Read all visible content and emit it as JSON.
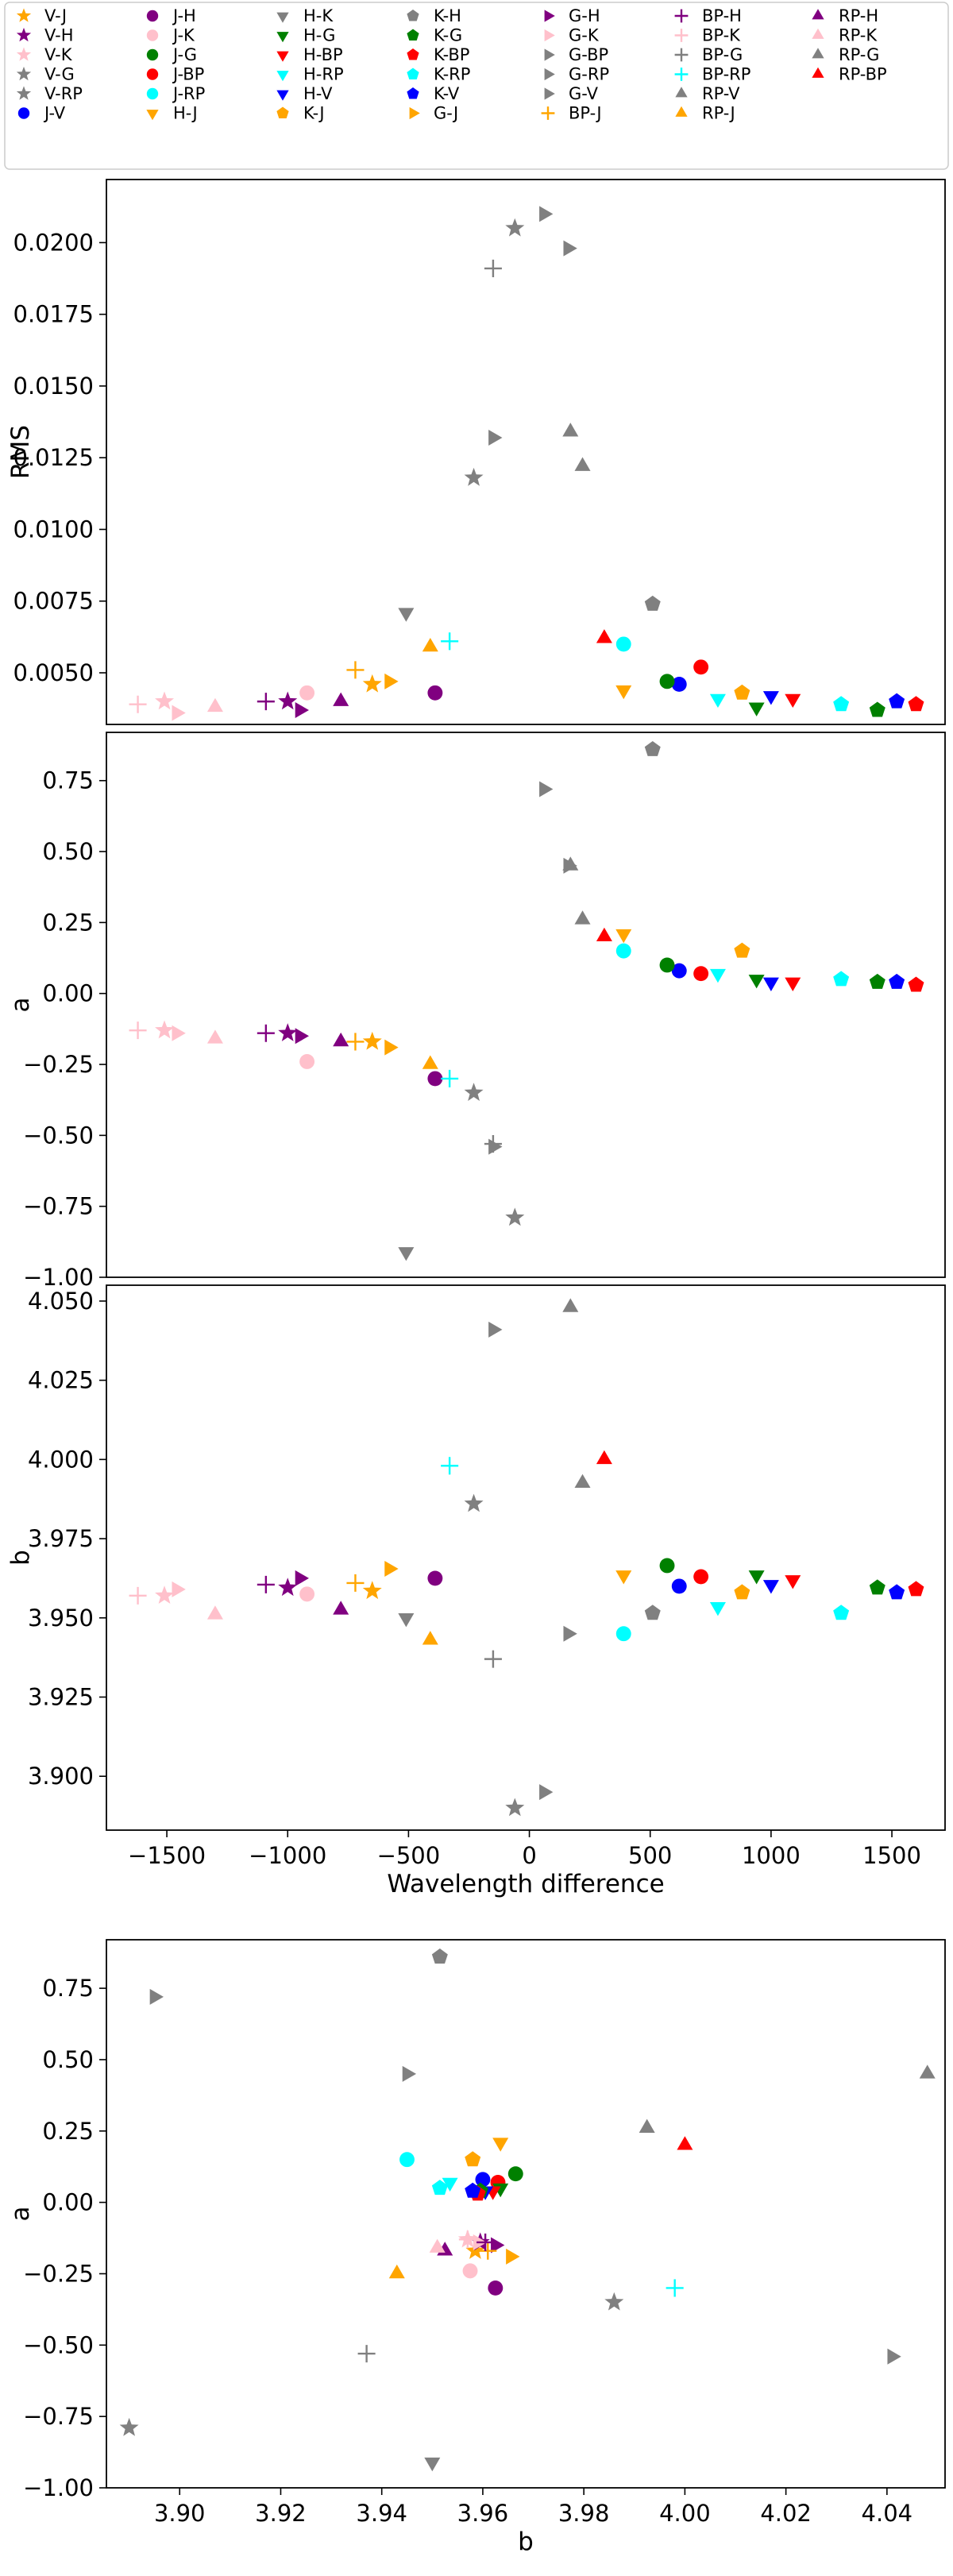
{
  "chart_data": {
    "legend": {
      "placement": "top",
      "entries": [
        {
          "label": "V-J",
          "marker": "star",
          "color": "#ffa500"
        },
        {
          "label": "V-H",
          "marker": "star",
          "color": "#800080"
        },
        {
          "label": "V-K",
          "marker": "star",
          "color": "#ffc0cb"
        },
        {
          "label": "V-G",
          "marker": "star",
          "color": "#808080"
        },
        {
          "label": "V-RP",
          "marker": "star",
          "color": "#808080"
        },
        {
          "label": "J-V",
          "marker": "circle",
          "color": "#0000ff"
        },
        {
          "label": "J-H",
          "marker": "circle",
          "color": "#800080"
        },
        {
          "label": "J-K",
          "marker": "circle",
          "color": "#ffc0cb"
        },
        {
          "label": "J-G",
          "marker": "circle",
          "color": "#008000"
        },
        {
          "label": "J-BP",
          "marker": "circle",
          "color": "#ff0000"
        },
        {
          "label": "J-RP",
          "marker": "circle",
          "color": "#00ffff"
        },
        {
          "label": "H-J",
          "marker": "tri-down",
          "color": "#ffa500"
        },
        {
          "label": "H-K",
          "marker": "tri-down",
          "color": "#808080"
        },
        {
          "label": "H-G",
          "marker": "tri-down",
          "color": "#008000"
        },
        {
          "label": "H-BP",
          "marker": "tri-down",
          "color": "#ff0000"
        },
        {
          "label": "H-RP",
          "marker": "tri-down",
          "color": "#00ffff"
        },
        {
          "label": "H-V",
          "marker": "tri-down",
          "color": "#0000ff"
        },
        {
          "label": "K-J",
          "marker": "pentagon",
          "color": "#ffa500"
        },
        {
          "label": "K-H",
          "marker": "pentagon",
          "color": "#808080"
        },
        {
          "label": "K-G",
          "marker": "pentagon",
          "color": "#008000"
        },
        {
          "label": "K-BP",
          "marker": "pentagon",
          "color": "#ff0000"
        },
        {
          "label": "K-RP",
          "marker": "pentagon",
          "color": "#00ffff"
        },
        {
          "label": "K-V",
          "marker": "pentagon",
          "color": "#0000ff"
        },
        {
          "label": "G-J",
          "marker": "tri-right",
          "color": "#ffa500"
        },
        {
          "label": "G-H",
          "marker": "tri-right",
          "color": "#800080"
        },
        {
          "label": "G-K",
          "marker": "tri-right",
          "color": "#ffc0cb"
        },
        {
          "label": "G-BP",
          "marker": "tri-right",
          "color": "#808080"
        },
        {
          "label": "G-RP",
          "marker": "tri-right",
          "color": "#808080"
        },
        {
          "label": "G-V",
          "marker": "tri-right",
          "color": "#808080"
        },
        {
          "label": "BP-J",
          "marker": "plus",
          "color": "#ffa500"
        },
        {
          "label": "BP-H",
          "marker": "plus",
          "color": "#800080"
        },
        {
          "label": "BP-K",
          "marker": "plus",
          "color": "#ffc0cb"
        },
        {
          "label": "BP-G",
          "marker": "plus",
          "color": "#808080"
        },
        {
          "label": "BP-RP",
          "marker": "plus",
          "color": "#00ffff"
        },
        {
          "label": "RP-V",
          "marker": "tri-up",
          "color": "#808080"
        },
        {
          "label": "RP-J",
          "marker": "tri-up",
          "color": "#ffa500"
        },
        {
          "label": "RP-H",
          "marker": "tri-up",
          "color": "#800080"
        },
        {
          "label": "RP-K",
          "marker": "tri-up",
          "color": "#ffc0cb"
        },
        {
          "label": "RP-G",
          "marker": "tri-up",
          "color": "#808080"
        },
        {
          "label": "RP-BP",
          "marker": "tri-up",
          "color": "#ff0000"
        }
      ]
    },
    "points": [
      {
        "label": "V-J",
        "wd": -650,
        "rms": 0.0046,
        "a": -0.17,
        "b": 3.9585
      },
      {
        "label": "V-H",
        "wd": -1000,
        "rms": 0.004,
        "a": -0.14,
        "b": 3.9595
      },
      {
        "label": "V-K",
        "wd": -1510,
        "rms": 0.004,
        "a": -0.13,
        "b": 3.957
      },
      {
        "label": "V-G",
        "wd": -230,
        "rms": 0.0118,
        "a": -0.35,
        "b": 3.986
      },
      {
        "label": "V-RP",
        "wd": -60,
        "rms": 0.0205,
        "a": -0.79,
        "b": 3.89
      },
      {
        "label": "J-V",
        "wd": 620,
        "rms": 0.0046,
        "a": 0.08,
        "b": 3.96
      },
      {
        "label": "J-H",
        "wd": -390,
        "rms": 0.0043,
        "a": -0.3,
        "b": 3.9625
      },
      {
        "label": "J-K",
        "wd": -920,
        "rms": 0.0043,
        "a": -0.24,
        "b": 3.9575
      },
      {
        "label": "J-G",
        "wd": 570,
        "rms": 0.0047,
        "a": 0.1,
        "b": 3.9665
      },
      {
        "label": "J-BP",
        "wd": 710,
        "rms": 0.0052,
        "a": 0.07,
        "b": 3.963
      },
      {
        "label": "J-RP",
        "wd": 390,
        "rms": 0.006,
        "a": 0.15,
        "b": 3.945
      },
      {
        "label": "H-J",
        "wd": 390,
        "rms": 0.0044,
        "a": 0.21,
        "b": 3.9635
      },
      {
        "label": "H-K",
        "wd": -510,
        "rms": 0.0071,
        "a": -0.91,
        "b": 3.95
      },
      {
        "label": "H-G",
        "wd": 940,
        "rms": 0.0038,
        "a": 0.05,
        "b": 3.9635
      },
      {
        "label": "H-BP",
        "wd": 1090,
        "rms": 0.0041,
        "a": 0.04,
        "b": 3.962
      },
      {
        "label": "H-RP",
        "wd": 780,
        "rms": 0.0041,
        "a": 0.07,
        "b": 3.9535
      },
      {
        "label": "H-V",
        "wd": 1000,
        "rms": 0.0042,
        "a": 0.04,
        "b": 3.9605
      },
      {
        "label": "K-J",
        "wd": 880,
        "rms": 0.0043,
        "a": 0.15,
        "b": 3.958
      },
      {
        "label": "K-H",
        "wd": 510,
        "rms": 0.0074,
        "a": 0.86,
        "b": 3.9515
      },
      {
        "label": "K-G",
        "wd": 1440,
        "rms": 0.0037,
        "a": 0.04,
        "b": 3.9595
      },
      {
        "label": "K-BP",
        "wd": 1600,
        "rms": 0.0039,
        "a": 0.03,
        "b": 3.959
      },
      {
        "label": "K-RP",
        "wd": 1290,
        "rms": 0.0039,
        "a": 0.05,
        "b": 3.9515
      },
      {
        "label": "K-V",
        "wd": 1520,
        "rms": 0.004,
        "a": 0.04,
        "b": 3.958
      },
      {
        "label": "G-J",
        "wd": -580,
        "rms": 0.0047,
        "a": -0.19,
        "b": 3.9655
      },
      {
        "label": "G-H",
        "wd": -950,
        "rms": 0.0037,
        "a": -0.15,
        "b": 3.9625
      },
      {
        "label": "G-K",
        "wd": -1460,
        "rms": 0.0036,
        "a": -0.14,
        "b": 3.959
      },
      {
        "label": "G-BP",
        "wd": 160,
        "rms": 0.0198,
        "a": 0.45,
        "b": 3.945
      },
      {
        "label": "G-RP",
        "wd": -150,
        "rms": 0.0132,
        "a": -0.54,
        "b": 4.041
      },
      {
        "label": "G-V",
        "wd": 60,
        "rms": 0.021,
        "a": 0.72,
        "b": 3.895
      },
      {
        "label": "BP-J",
        "wd": -720,
        "rms": 0.0051,
        "a": -0.17,
        "b": 3.961
      },
      {
        "label": "BP-H",
        "wd": -1090,
        "rms": 0.004,
        "a": -0.14,
        "b": 3.9605
      },
      {
        "label": "BP-K",
        "wd": -1620,
        "rms": 0.0039,
        "a": -0.13,
        "b": 3.957
      },
      {
        "label": "BP-G",
        "wd": -150,
        "rms": 0.0191,
        "a": -0.53,
        "b": 3.937
      },
      {
        "label": "BP-RP",
        "wd": -330,
        "rms": 0.0061,
        "a": -0.3,
        "b": 3.998
      },
      {
        "label": "RP-V",
        "wd": 220,
        "rms": 0.0122,
        "a": 0.26,
        "b": 3.9925
      },
      {
        "label": "RP-J",
        "wd": -410,
        "rms": 0.0059,
        "a": -0.25,
        "b": 3.943
      },
      {
        "label": "RP-H",
        "wd": -780,
        "rms": 0.004,
        "a": -0.17,
        "b": 3.9525
      },
      {
        "label": "RP-K",
        "wd": -1300,
        "rms": 0.0038,
        "a": -0.16,
        "b": 3.951
      },
      {
        "label": "RP-G",
        "wd": 170,
        "rms": 0.0134,
        "a": 0.45,
        "b": 4.048
      },
      {
        "label": "RP-BP",
        "wd": 310,
        "rms": 0.0062,
        "a": 0.2,
        "b": 4.0
      }
    ],
    "panels": [
      {
        "type": "scatter",
        "x_field": "wd",
        "y_field": "rms",
        "xlim": [
          -1750,
          1720
        ],
        "ylim": [
          0.0032,
          0.0222
        ],
        "xlabel": "",
        "ylabel": "RMS",
        "xticks": [],
        "yticks": [
          0.005,
          0.0075,
          0.01,
          0.0125,
          0.015,
          0.0175,
          0.02
        ],
        "ytick_labels": [
          "0.0050",
          "0.0075",
          "0.0100",
          "0.0125",
          "0.0150",
          "0.0175",
          "0.0200"
        ],
        "grid": false
      },
      {
        "type": "scatter",
        "x_field": "wd",
        "y_field": "a",
        "xlim": [
          -1750,
          1720
        ],
        "ylim": [
          -1.0,
          0.92
        ],
        "xlabel": "",
        "ylabel": "a",
        "xticks": [],
        "yticks": [
          -1.0,
          -0.75,
          -0.5,
          -0.25,
          0.0,
          0.25,
          0.5,
          0.75
        ],
        "ytick_labels": [
          "−1.00",
          "−0.75",
          "−0.50",
          "−0.25",
          "0.00",
          "0.25",
          "0.50",
          "0.75"
        ],
        "grid": false
      },
      {
        "type": "scatter",
        "x_field": "wd",
        "y_field": "b",
        "xlim": [
          -1750,
          1720
        ],
        "ylim": [
          3.883,
          4.055
        ],
        "xlabel": "Wavelength difference",
        "ylabel": "b",
        "xticks": [
          -1500,
          -1000,
          -500,
          0,
          500,
          1000,
          1500
        ],
        "xtick_labels": [
          "−1500",
          "−1000",
          "−500",
          "0",
          "500",
          "1000",
          "1500"
        ],
        "yticks": [
          3.9,
          3.925,
          3.95,
          3.975,
          4.0,
          4.025,
          4.05
        ],
        "ytick_labels": [
          "3.900",
          "3.925",
          "3.950",
          "3.975",
          "4.000",
          "4.025",
          "4.050"
        ],
        "grid": false
      },
      {
        "type": "scatter",
        "x_field": "b",
        "y_field": "a",
        "xlim": [
          3.8855,
          4.0515
        ],
        "ylim": [
          -1.0,
          0.92
        ],
        "xlabel": "b",
        "ylabel": "a",
        "xticks": [
          3.9,
          3.92,
          3.94,
          3.96,
          3.98,
          4.0,
          4.02,
          4.04
        ],
        "xtick_labels": [
          "3.90",
          "3.92",
          "3.94",
          "3.96",
          "3.98",
          "4.00",
          "4.02",
          "4.04"
        ],
        "yticks": [
          -1.0,
          -0.75,
          -0.5,
          -0.25,
          0.0,
          0.25,
          0.5,
          0.75
        ],
        "ytick_labels": [
          "−1.00",
          "−0.75",
          "−0.50",
          "−0.25",
          "0.00",
          "0.25",
          "0.50",
          "0.75"
        ],
        "grid": false
      }
    ]
  }
}
